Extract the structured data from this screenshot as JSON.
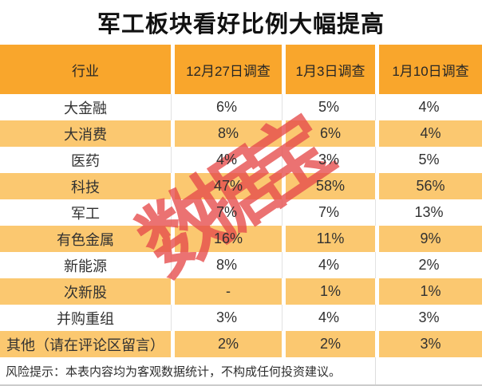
{
  "title": "军工板块看好比例大幅提高",
  "watermark": "数据宝",
  "chart_data": {
    "type": "table",
    "title": "军工板块看好比例大幅提高",
    "columns": [
      "行业",
      "12月27日调查",
      "1月3日调查",
      "1月10日调查"
    ],
    "rows": [
      [
        "大金融",
        "6%",
        "5%",
        "4%"
      ],
      [
        "大消费",
        "8%",
        "6%",
        "4%"
      ],
      [
        "医药",
        "4%",
        "3%",
        "5%"
      ],
      [
        "科技",
        "47%",
        "58%",
        "56%"
      ],
      [
        "军工",
        "7%",
        "7%",
        "13%"
      ],
      [
        "有色金属",
        "16%",
        "11%",
        "9%"
      ],
      [
        "新能源",
        "8%",
        "4%",
        "2%"
      ],
      [
        "次新股",
        "-",
        "1%",
        "1%"
      ],
      [
        "并购重组",
        "3%",
        "4%",
        "3%"
      ],
      [
        "其他（请在评论区留言）",
        "2%",
        "2%",
        "3%"
      ]
    ],
    "layout_hints": {
      "row_striping": "odd rows white, even rows light orange",
      "header_style": "solid orange band",
      "values_unit": "percent of survey respondents"
    }
  },
  "footer": {
    "note": "风险提示：本表内容均为客观数据统计，不构成任何投资建议。"
  },
  "colors": {
    "title": "#111111",
    "header_bg": "#F9A62C",
    "stripe_bg": "#FBC870",
    "watermark": "#E64B4B"
  }
}
